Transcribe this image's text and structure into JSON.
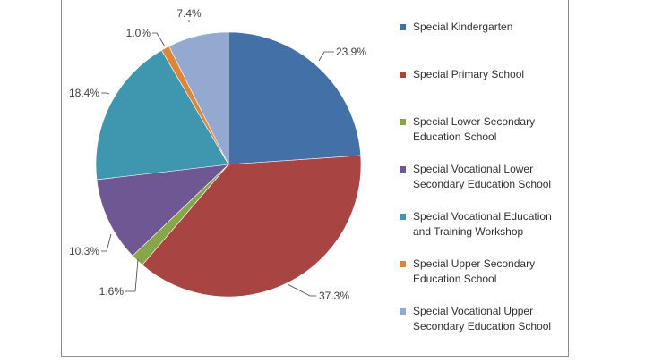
{
  "chart_data": {
    "type": "pie",
    "title": "",
    "legend_position": "right",
    "categories": [
      "Special Kindergarten",
      "Special Primary School",
      "Special Lower Secondary\nEducation School",
      "Special Vocational Lower\nSecondary Education School",
      "Special Vocational Education\nand Training Workshop",
      "Special Upper Secondary\nEducation School",
      "Special Vocational Upper\nSecondary Education School"
    ],
    "values": [
      23.9,
      37.3,
      1.6,
      10.3,
      18.4,
      1.0,
      7.4
    ],
    "labels": [
      "23.9%",
      "37.3%",
      "1.6%",
      "10.3%",
      "18.4%",
      "1.0%",
      "7.4%"
    ],
    "colors": [
      "#4470A8",
      "#A84543",
      "#87A64A",
      "#6E5793",
      "#3E97AE",
      "#DE8538",
      "#94A9D0"
    ]
  }
}
